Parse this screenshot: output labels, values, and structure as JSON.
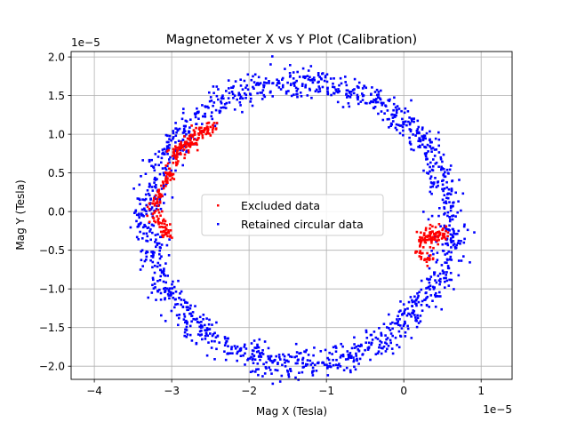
{
  "chart_data": {
    "type": "scatter",
    "title": "Magnetometer X vs Y Plot (Calibration)",
    "xlabel": "Mag X (Tesla)",
    "ylabel": "Mag Y (Tesla)",
    "x_offset_text": "1e−5",
    "y_offset_text": "1e−5",
    "xlim": [
      -4.3,
      1.4
    ],
    "ylim": [
      -2.17,
      2.07
    ],
    "x_ticks": [
      -4,
      -3,
      -2,
      -1,
      0,
      1
    ],
    "x_tick_labels": [
      "−4",
      "−3",
      "−2",
      "−1",
      "0",
      "1"
    ],
    "y_ticks": [
      -2.0,
      -1.5,
      -1.0,
      -0.5,
      0.0,
      0.5,
      1.0,
      1.5,
      2.0
    ],
    "y_tick_labels": [
      "−2.0",
      "−1.5",
      "−1.0",
      "−0.5",
      "0.0",
      "0.5",
      "1.0",
      "1.5",
      "2.0"
    ],
    "grid": true,
    "legend_position": "center",
    "series": [
      {
        "name": "Excluded data",
        "color": "#ff0000",
        "clusters": [
          {
            "from": [
              -3.0,
              0.72
            ],
            "to": [
              -2.48,
              1.12
            ],
            "count": 130,
            "spread": 0.05
          },
          {
            "from": [
              -3.25,
              0.02
            ],
            "to": [
              -2.95,
              0.65
            ],
            "count": 70,
            "spread": 0.04
          },
          {
            "from": [
              -3.2,
              -0.05
            ],
            "to": [
              -3.05,
              -0.35
            ],
            "count": 55,
            "spread": 0.045
          },
          {
            "from": [
              0.22,
              -0.35
            ],
            "to": [
              0.52,
              -0.28
            ],
            "count": 90,
            "spread": 0.06
          },
          {
            "from": [
              0.18,
              -0.52
            ],
            "to": [
              0.35,
              -0.65
            ],
            "count": 25,
            "spread": 0.04
          }
        ]
      },
      {
        "name": "Retained circular data",
        "color": "#0000ff",
        "ring": {
          "center_x": -1.35,
          "center_y": -0.15,
          "radius_x": 1.95,
          "radius_y": 1.82,
          "count": 1500,
          "spread": 0.1,
          "sample_points": [
            [
              -1.2,
              1.88
            ],
            [
              -1.3,
              1.85
            ],
            [
              -2.2,
              1.62
            ],
            [
              -2.4,
              1.45
            ],
            [
              -3.35,
              0.15
            ],
            [
              -3.38,
              -0.5
            ],
            [
              -3.25,
              -0.95
            ],
            [
              -2.3,
              -1.7
            ],
            [
              -1.2,
              -1.98
            ],
            [
              0.0,
              -1.2
            ],
            [
              0.32,
              -0.1
            ],
            [
              0.4,
              0.8
            ],
            [
              0.1,
              1.2
            ],
            [
              -0.3,
              1.45
            ],
            [
              -0.6,
              1.62
            ]
          ]
        }
      }
    ]
  }
}
